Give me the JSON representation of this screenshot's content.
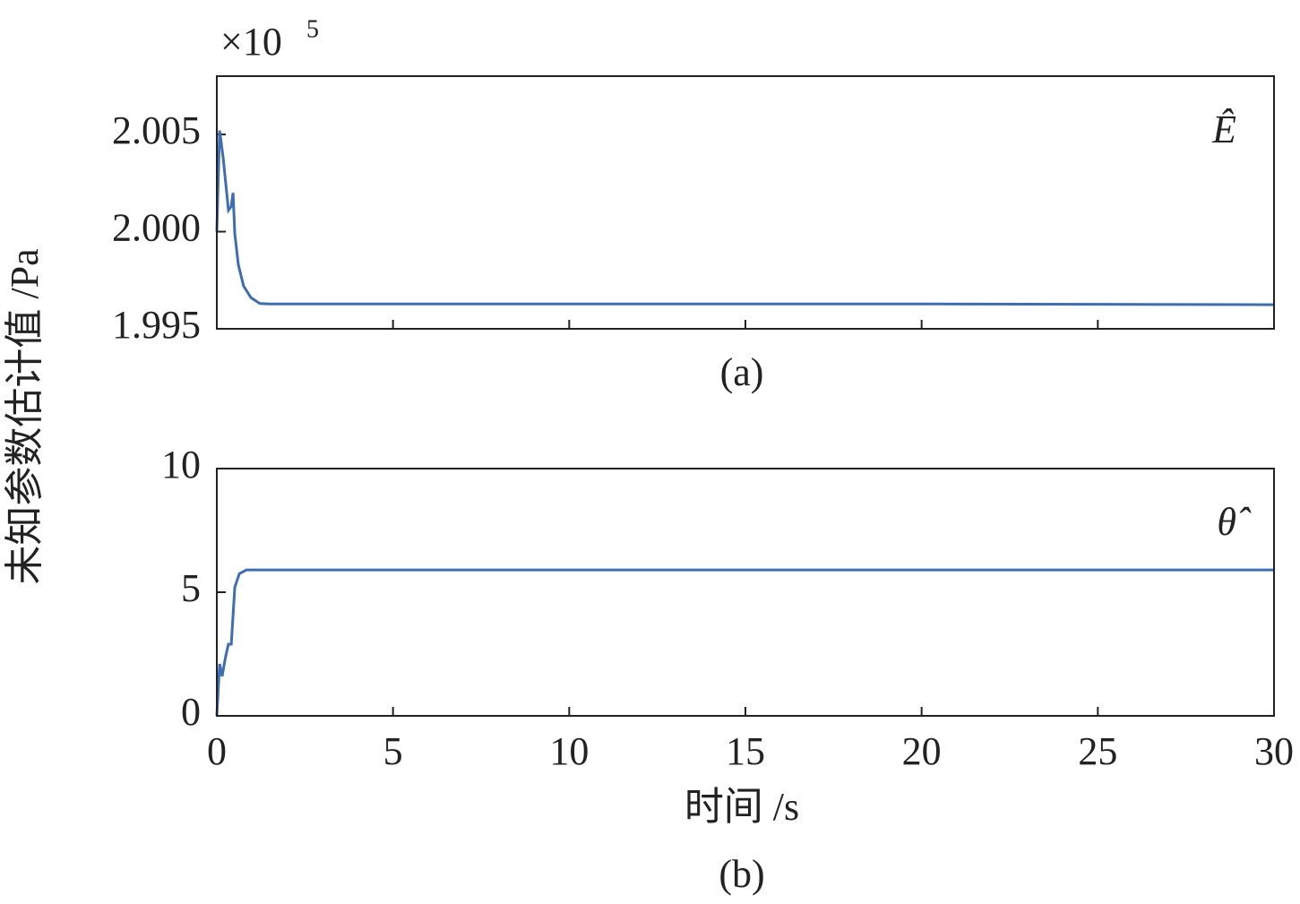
{
  "chart_data": [
    {
      "type": "line",
      "caption": "(a)",
      "annotation": "Ê",
      "ylabel": "未知参数估计值 /Pa",
      "offset_text": "×10",
      "offset_exponent": "5",
      "color": "#3e6db3",
      "x": [
        0,
        0.08,
        0.18,
        0.28,
        0.33,
        0.41,
        0.46,
        0.51,
        0.61,
        0.76,
        0.97,
        1.22,
        1.5,
        5,
        10,
        15,
        20,
        25,
        30
      ],
      "values": [
        2.0,
        2.0052,
        2.0038,
        2.002,
        2.0011,
        2.0013,
        2.002,
        1.9999,
        1.9983,
        1.9972,
        1.9966,
        1.9963,
        1.99628,
        1.99628,
        1.99628,
        1.99628,
        1.99628,
        1.99626,
        1.99624
      ],
      "xlim": [
        0,
        30
      ],
      "xticks": [
        0,
        5,
        10,
        15,
        20,
        25,
        30
      ],
      "xtick_labels": false,
      "ylim": [
        1.995,
        2.008
      ],
      "yticks": [
        1.995,
        {
          "value": 2,
          "label": "2.000"
        },
        2.005
      ]
    },
    {
      "type": "line",
      "caption": "(b)",
      "annotation": "θ̂",
      "xlabel": "时间 /s",
      "color": "#3e6db3",
      "x": [
        0,
        0.08,
        0.15,
        0.25,
        0.33,
        0.41,
        0.51,
        0.64,
        0.84,
        1.5,
        30
      ],
      "values": [
        0,
        2.1,
        1.6,
        2.4,
        2.9,
        2.9,
        5.2,
        5.75,
        5.9,
        5.9,
        5.9
      ],
      "xlim": [
        0,
        30
      ],
      "xticks": [
        0,
        5,
        10,
        15,
        20,
        25,
        30
      ],
      "xtick_labels": true,
      "ylim": [
        0,
        10
      ],
      "yticks": [
        0,
        5,
        10
      ]
    }
  ]
}
